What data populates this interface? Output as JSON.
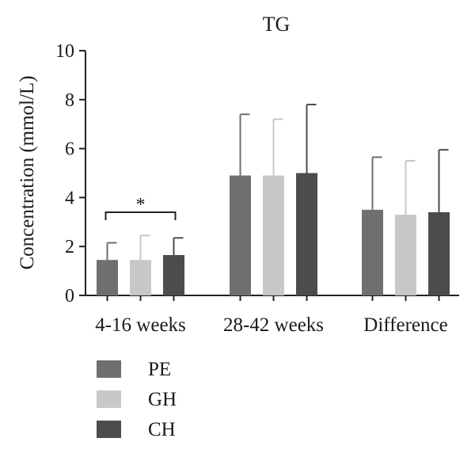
{
  "chart_data": {
    "type": "bar",
    "title": "TG",
    "xlabel": "",
    "ylabel": "Concentration (mmol/L)",
    "ylim": [
      0,
      10
    ],
    "yticks": [
      "0",
      "2",
      "4",
      "6",
      "8",
      "10"
    ],
    "categories": [
      "4-16 weeks",
      "28-42 weeks",
      "Difference"
    ],
    "series": [
      {
        "name": "PE",
        "color": "#6f6f6f",
        "values": [
          1.45,
          4.9,
          3.5
        ],
        "errors": [
          0.7,
          2.5,
          2.15
        ]
      },
      {
        "name": "GH",
        "color": "#c8c8c8",
        "values": [
          1.45,
          4.9,
          3.3
        ],
        "errors": [
          1.0,
          2.3,
          2.2
        ]
      },
      {
        "name": "CH",
        "color": "#4c4c4c",
        "values": [
          1.65,
          5.0,
          3.4
        ],
        "errors": [
          0.7,
          2.8,
          2.55
        ]
      }
    ],
    "legend_position": "bottom-left",
    "annotations": [
      {
        "text": "*",
        "category": "4-16 weeks",
        "from_series": "PE",
        "to_series": "CH",
        "value": 3.4
      }
    ]
  }
}
